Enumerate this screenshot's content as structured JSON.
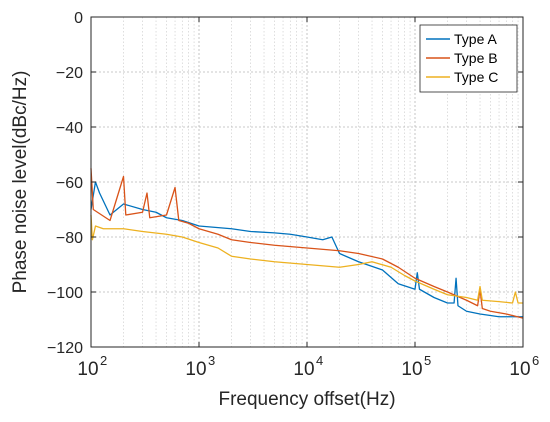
{
  "chart_data": {
    "type": "line",
    "title": "",
    "xlabel": "Frequency offset(Hz)",
    "ylabel": "Phase noise level(dBc/Hz)",
    "xscale": "log",
    "xlim": [
      100,
      1000000
    ],
    "ylim": [
      -120,
      0
    ],
    "grid": true,
    "legend_position": "top-right",
    "xticks": [
      {
        "base": "10",
        "exp": "2"
      },
      {
        "base": "10",
        "exp": "3"
      },
      {
        "base": "10",
        "exp": "4"
      },
      {
        "base": "10",
        "exp": "5"
      },
      {
        "base": "10",
        "exp": "6"
      }
    ],
    "yticks": [
      "0",
      "−20",
      "−40",
      "−60",
      "−80",
      "−100",
      "−120"
    ],
    "series": [
      {
        "name": "Type A",
        "color": "#0072BD",
        "points": [
          [
            100,
            -70
          ],
          [
            110,
            -60
          ],
          [
            120,
            -64
          ],
          [
            150,
            -72
          ],
          [
            200,
            -68
          ],
          [
            300,
            -70
          ],
          [
            400,
            -71
          ],
          [
            500,
            -73
          ],
          [
            700,
            -74
          ],
          [
            1000,
            -76
          ],
          [
            2000,
            -77
          ],
          [
            3000,
            -78
          ],
          [
            5000,
            -78.5
          ],
          [
            7000,
            -79
          ],
          [
            10000,
            -80
          ],
          [
            14000,
            -81
          ],
          [
            17000,
            -80
          ],
          [
            20000,
            -86
          ],
          [
            30000,
            -89
          ],
          [
            50000,
            -92
          ],
          [
            70000,
            -97
          ],
          [
            100000,
            -99
          ],
          [
            105000,
            -93
          ],
          [
            110000,
            -99
          ],
          [
            150000,
            -102
          ],
          [
            200000,
            -104
          ],
          [
            230000,
            -104
          ],
          [
            240000,
            -95
          ],
          [
            250000,
            -105
          ],
          [
            300000,
            -107
          ],
          [
            400000,
            -108
          ],
          [
            600000,
            -109
          ],
          [
            800000,
            -109
          ],
          [
            1000000,
            -109
          ]
        ]
      },
      {
        "name": "Type B",
        "color": "#D95319",
        "points": [
          [
            100,
            -55
          ],
          [
            105,
            -70
          ],
          [
            150,
            -74
          ],
          [
            200,
            -58
          ],
          [
            210,
            -72
          ],
          [
            300,
            -71
          ],
          [
            330,
            -64
          ],
          [
            350,
            -73
          ],
          [
            500,
            -72
          ],
          [
            600,
            -62
          ],
          [
            650,
            -74
          ],
          [
            800,
            -75
          ],
          [
            1000,
            -77
          ],
          [
            1500,
            -79
          ],
          [
            2000,
            -81
          ],
          [
            3000,
            -82
          ],
          [
            5000,
            -83
          ],
          [
            10000,
            -84
          ],
          [
            20000,
            -85
          ],
          [
            30000,
            -86
          ],
          [
            50000,
            -88
          ],
          [
            70000,
            -91
          ],
          [
            100000,
            -95
          ],
          [
            150000,
            -98
          ],
          [
            200000,
            -100
          ],
          [
            300000,
            -103
          ],
          [
            380000,
            -105
          ],
          [
            400000,
            -99
          ],
          [
            420000,
            -106
          ],
          [
            500000,
            -107
          ],
          [
            700000,
            -108
          ],
          [
            1000000,
            -109.5
          ]
        ]
      },
      {
        "name": "Type C",
        "color": "#EDB120",
        "points": [
          [
            100,
            -72
          ],
          [
            103,
            -81
          ],
          [
            110,
            -76
          ],
          [
            130,
            -77
          ],
          [
            200,
            -77
          ],
          [
            300,
            -78
          ],
          [
            500,
            -79
          ],
          [
            700,
            -80
          ],
          [
            1000,
            -82
          ],
          [
            1500,
            -84
          ],
          [
            2000,
            -87
          ],
          [
            3000,
            -88
          ],
          [
            5000,
            -89
          ],
          [
            10000,
            -90
          ],
          [
            20000,
            -91
          ],
          [
            30000,
            -90
          ],
          [
            40000,
            -89
          ],
          [
            60000,
            -91
          ],
          [
            80000,
            -94
          ],
          [
            100000,
            -96
          ],
          [
            150000,
            -99
          ],
          [
            200000,
            -101
          ],
          [
            300000,
            -102
          ],
          [
            380000,
            -103
          ],
          [
            400000,
            -98
          ],
          [
            420000,
            -103
          ],
          [
            600000,
            -103.5
          ],
          [
            800000,
            -104
          ],
          [
            850000,
            -100
          ],
          [
            900000,
            -104
          ],
          [
            1000000,
            -104
          ]
        ]
      }
    ]
  }
}
